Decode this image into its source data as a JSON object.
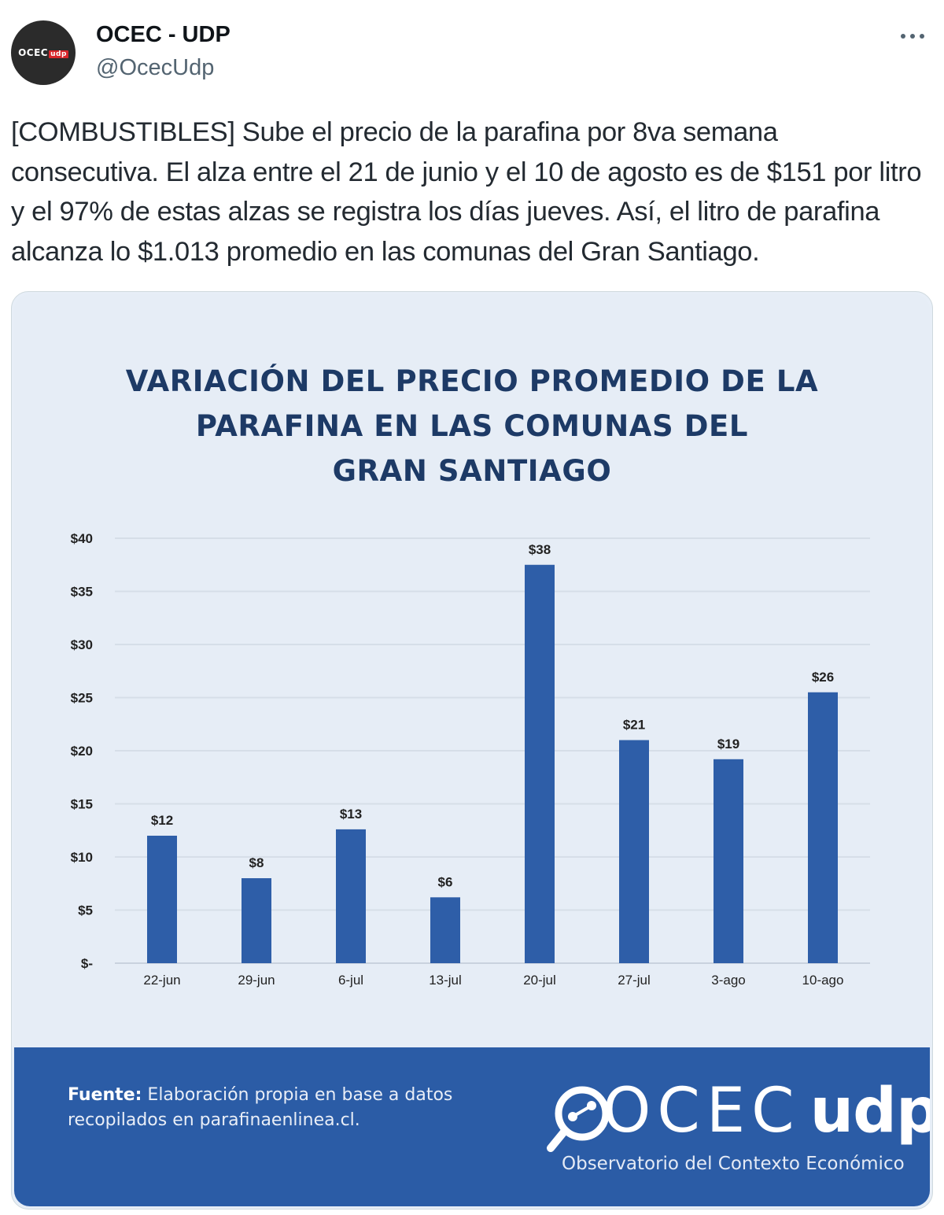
{
  "author": {
    "display_name": "OCEC - UDP",
    "handle": "@OcecUdp",
    "avatar_text": "OCEC",
    "avatar_accent": "udp"
  },
  "more_icon": "more-horizontal-icon",
  "tweet": {
    "text": "[COMBUSTIBLES] Sube el precio de la parafina por 8va semana consecutiva. El alza entre el 21 de junio y el 10 de agosto es de $151 por litro y el 97% de estas alzas se registra los días jueves. Así, el litro de parafina alcanza lo $1.013 promedio en las comunas del Gran Santiago."
  },
  "card": {
    "title_lines": [
      "VARIACIÓN DEL PRECIO PROMEDIO DE LA",
      "PARAFINA EN LAS COMUNAS DEL",
      "GRAN SANTIAGO"
    ],
    "source_label": "Fuente:",
    "source_text": " Elaboración propia en base a datos recopilados en parafinaenlinea.cl.",
    "logo_text": "OCEC",
    "logo_udp": "udp",
    "logo_subtitle": "Observatorio del Contexto Económico"
  },
  "colors": {
    "bar": "#2e5ea8",
    "footer": "#2b5ca6",
    "title": "#1d3a66",
    "card_bg": "#e6edf6"
  },
  "chart_data": {
    "type": "bar",
    "title": "VARIACIÓN DEL PRECIO PROMEDIO DE LA PARAFINA EN LAS COMUNAS DEL GRAN SANTIAGO",
    "categories": [
      "22-jun",
      "29-jun",
      "6-jul",
      "13-jul",
      "20-jul",
      "27-jul",
      "3-ago",
      "10-ago"
    ],
    "values": [
      12,
      8,
      12.6,
      6.2,
      37.5,
      21,
      19.2,
      25.5
    ],
    "data_labels": [
      "$12",
      "$8",
      "$13",
      "$6",
      "$38",
      "$21",
      "$19",
      "$26"
    ],
    "yticks": [
      "$-",
      "$5",
      "$10",
      "$15",
      "$20",
      "$25",
      "$30",
      "$35",
      "$40"
    ],
    "ylim": [
      0,
      40
    ],
    "grid": true,
    "legend": "none"
  }
}
